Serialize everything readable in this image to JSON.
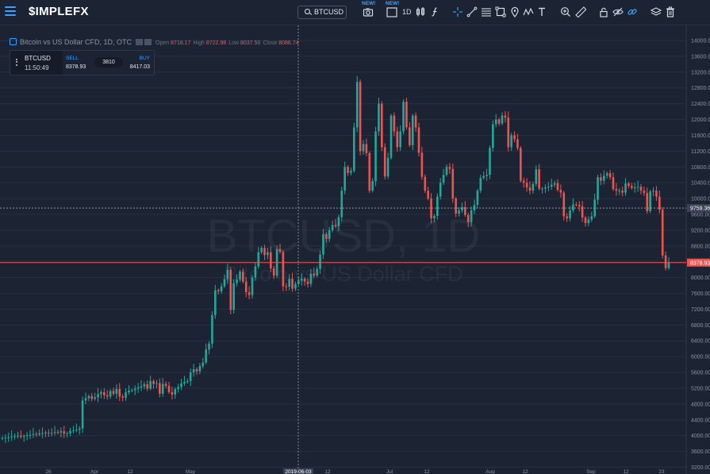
{
  "app": {
    "logo": "$IMPLEFX",
    "symbol": "BTCUSD",
    "interval": "1D",
    "new_badge": "NEW!"
  },
  "legend": {
    "title": "Bitcoin vs US Dollar CFD, 1D, OTC",
    "open_label": "Open",
    "open": "8718.17",
    "high_label": "High",
    "high": "8722.98",
    "low_label": "Low",
    "low": "8037.50",
    "close_label": "Close",
    "close": "8086.74"
  },
  "trade": {
    "symbol": "BTCUSD",
    "time": "11:50:49",
    "sell_label": "SELL",
    "sell_price": "8378.93",
    "spread": "3810",
    "buy_label": "BUY",
    "buy_price": "8417.03"
  },
  "watermark": {
    "line1": "BTCUSD, 1D",
    "line2": "Bitcoin vs US Dollar CFD"
  },
  "colors": {
    "up": "#26a69a",
    "down": "#ef5350",
    "background": "#1c2433",
    "accent": "#3aa0ff",
    "grid": "#263042"
  },
  "chart_data": {
    "type": "candlestick",
    "x_tick_labels": [
      "26",
      "Apr",
      "12",
      "May",
      "2019-06-03",
      "12",
      "Jul",
      "12",
      "Aug",
      "12",
      "Sep",
      "12",
      "23"
    ],
    "y_tick_labels": [
      "3200.00",
      "3600.00",
      "4000.00",
      "4400.00",
      "4800.00",
      "5200.00",
      "5600.00",
      "6000.00",
      "6400.00",
      "6800.00",
      "7200.00",
      "7600.00",
      "8000.00",
      "8400.00",
      "8800.00",
      "9200.00",
      "9600.00",
      "10000.00",
      "10400.00",
      "10800.00",
      "11200.00",
      "11600.00",
      "12000.00",
      "12400.00",
      "12800.00",
      "13200.00",
      "13600.00",
      "14000.00"
    ],
    "y_range": [
      3130,
      14180
    ],
    "crosshair_price": "9759.36",
    "last_price": "8378.93",
    "closes": [
      3940,
      3950,
      3960,
      3980,
      3990,
      4000,
      3970,
      3990,
      4010,
      4020,
      4040,
      4030,
      4060,
      4070,
      4080,
      4060,
      4070,
      4090,
      4080,
      4110,
      4050,
      4060,
      4120,
      4130,
      4150,
      4180,
      4890,
      4950,
      5000,
      4930,
      4970,
      5050,
      5100,
      5020,
      4990,
      5130,
      5060,
      5180,
      4990,
      4960,
      5100,
      5140,
      5150,
      5190,
      5220,
      5250,
      5300,
      5190,
      5380,
      5310,
      5330,
      5060,
      5310,
      5260,
      5100,
      5040,
      5180,
      5230,
      5320,
      5360,
      5380,
      5600,
      5680,
      5630,
      5760,
      5850,
      6180,
      6330,
      7050,
      7680,
      7650,
      7780,
      7960,
      8200,
      7180,
      7860,
      7950,
      8150,
      7900,
      7630,
      7560,
      8000,
      8280,
      8640,
      8750,
      8570,
      8640,
      8230,
      8050,
      8720,
      8650,
      7780,
      7770,
      7970,
      7720,
      7840,
      7920,
      7970,
      7900,
      7840,
      8100,
      8050,
      8220,
      8580,
      9100,
      8980,
      9200,
      9330,
      9300,
      9530,
      10200,
      10800,
      10650,
      10700,
      11800,
      12950,
      11200,
      11380,
      11150,
      10200,
      10440,
      11700,
      12400,
      11300,
      10560,
      11030,
      12100,
      11700,
      11300,
      11700,
      12450,
      11800,
      11350,
      12100,
      11800,
      11160,
      10550,
      10200,
      10000,
      9500,
      9560,
      10050,
      10400,
      10600,
      10800,
      10750,
      10000,
      9620,
      9700,
      9780,
      9580,
      9400,
      9700,
      9840,
      10200,
      10520,
      10570,
      10600,
      11280,
      11880,
      12000,
      11900,
      12100,
      12050,
      11300,
      11600,
      11500,
      11280,
      10450,
      10400,
      10280,
      10200,
      10370,
      10740,
      10250,
      10250,
      10280,
      10300,
      10350,
      10390,
      10220,
      10150,
      9550,
      9500,
      9700,
      9850,
      9840,
      9800,
      9520,
      9380,
      9470,
      9550,
      9970,
      10540,
      10450,
      10580,
      10640,
      10540,
      10240,
      10200,
      10200,
      10150,
      10380,
      10320,
      10270,
      10280,
      10300,
      10200,
      10140,
      9680,
      10180,
      10200,
      10050,
      9720,
      8560,
      8240,
      8380
    ]
  }
}
